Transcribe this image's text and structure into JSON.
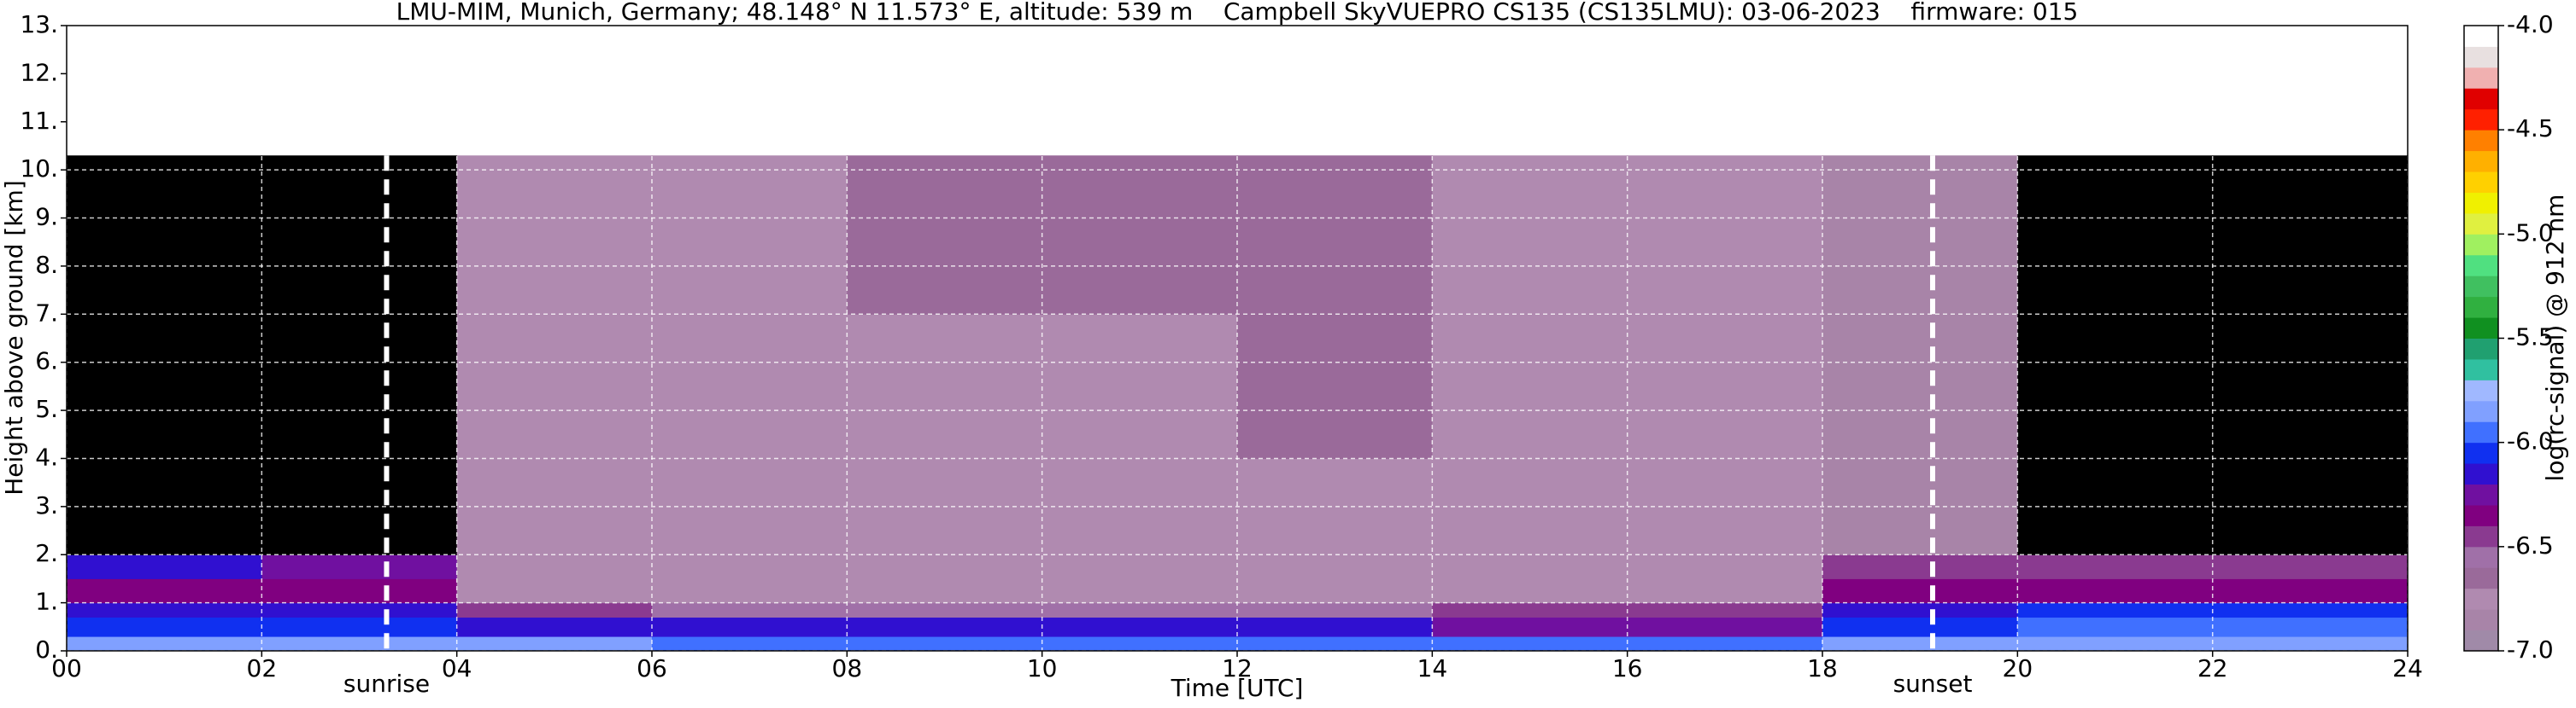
{
  "chart_data": {
    "type": "heatmap",
    "title": "LMU-MIM, Munich, Germany; 48.148° N 11.573° E, altitude: 539 m    Campbell SkyVUEPRO CS135 (CS135LMU): 03-06-2023    firmware: 015",
    "xlabel": "Time [UTC]",
    "ylabel": "Height above ground [km]",
    "x": [
      0,
      2,
      4,
      6,
      8,
      10,
      12,
      14,
      16,
      18,
      20,
      22,
      24
    ],
    "y": [
      0,
      0.3,
      0.7,
      1.0,
      1.5,
      2.0,
      4.0,
      7.0,
      10.3
    ],
    "z": [
      [
        -5.9,
        -5.9,
        -5.9,
        -6.0,
        -6.0,
        -6.0,
        -6.0,
        -6.0,
        -6.0,
        -5.9,
        -5.9,
        -5.9
      ],
      [
        -6.1,
        -6.1,
        -6.2,
        -6.2,
        -6.2,
        -6.2,
        -6.2,
        -6.3,
        -6.3,
        -6.1,
        -6.0,
        -6.0
      ],
      [
        -6.2,
        -6.2,
        -6.5,
        -6.6,
        -6.6,
        -6.6,
        -6.6,
        -6.5,
        -6.5,
        -6.2,
        -6.1,
        -6.1
      ],
      [
        -6.4,
        -6.4,
        -6.8,
        -6.8,
        -6.8,
        -6.8,
        -6.8,
        -6.8,
        -6.8,
        -6.4,
        -6.4,
        -6.4
      ],
      [
        -6.2,
        -6.3,
        -6.8,
        -6.8,
        -6.8,
        -6.8,
        -6.8,
        -6.8,
        -6.8,
        -6.5,
        -6.5,
        -6.5
      ],
      [
        -7.3,
        -7.2,
        -6.8,
        -6.8,
        -6.8,
        -6.8,
        -6.8,
        -6.8,
        -6.8,
        -6.9,
        -7.3,
        -7.3
      ],
      [
        -7.3,
        -7.2,
        -6.8,
        -6.8,
        -6.8,
        -6.8,
        -6.7,
        -6.8,
        -6.8,
        -6.9,
        -7.3,
        -7.3
      ],
      [
        -7.3,
        -7.2,
        -6.8,
        -6.8,
        -6.7,
        -6.7,
        -6.7,
        -6.8,
        -6.8,
        -6.9,
        -7.3,
        -7.3
      ]
    ],
    "xlim": [
      0,
      24
    ],
    "xticks": [
      {
        "value": 0,
        "label": "00"
      },
      {
        "value": 2,
        "label": "02"
      },
      {
        "value": 4,
        "label": "04"
      },
      {
        "value": 6,
        "label": "06"
      },
      {
        "value": 8,
        "label": "08"
      },
      10,
      12,
      14,
      16,
      18,
      20,
      22,
      24
    ],
    "ylim": [
      0,
      13
    ],
    "yticks": [
      {
        "value": 0,
        "label": "0."
      },
      {
        "value": 1,
        "label": "1."
      },
      {
        "value": 2,
        "label": "2."
      },
      {
        "value": 3,
        "label": "3."
      },
      {
        "value": 4,
        "label": "4."
      },
      {
        "value": 5,
        "label": "5."
      },
      {
        "value": 6,
        "label": "6."
      },
      {
        "value": 7,
        "label": "7."
      },
      {
        "value": 8,
        "label": "8."
      },
      {
        "value": 9,
        "label": "9."
      },
      {
        "value": 10,
        "label": "10."
      },
      {
        "value": 11,
        "label": "11."
      },
      {
        "value": 12,
        "label": "12."
      },
      {
        "value": 13,
        "label": "13."
      }
    ],
    "grid": true,
    "annotations": [
      {
        "x": 3.28,
        "label": "sunrise"
      },
      {
        "x": 19.13,
        "label": "sunset"
      }
    ],
    "colorbar": {
      "label": "log(rc-signal) @ 912 nm",
      "lim": [
        -7,
        -4
      ],
      "ticks": [
        {
          "value": -7,
          "label": "-7.0"
        },
        -6.5,
        {
          "value": -6,
          "label": "-6.0"
        },
        -5.5,
        {
          "value": -5,
          "label": "-5.0"
        },
        -4.5,
        {
          "value": -4,
          "label": "-4.0"
        }
      ],
      "colors": [
        "#a08aa8",
        "#a884a8",
        "#b08ab0",
        "#9a6a9a",
        "#a070a8",
        "#8a3a90",
        "#800080",
        "#7010a0",
        "#3010d0",
        "#1030f0",
        "#4070ff",
        "#80a0ff",
        "#a0b8ff",
        "#30c0a0",
        "#20a070",
        "#109020",
        "#30b040",
        "#40c060",
        "#50e080",
        "#a0f060",
        "#e0f040",
        "#f0f000",
        "#ffd000",
        "#ffb000",
        "#ff8000",
        "#ff2000",
        "#e00000",
        "#f0b0b0",
        "#e8e0e0",
        "#ffffff"
      ]
    }
  }
}
